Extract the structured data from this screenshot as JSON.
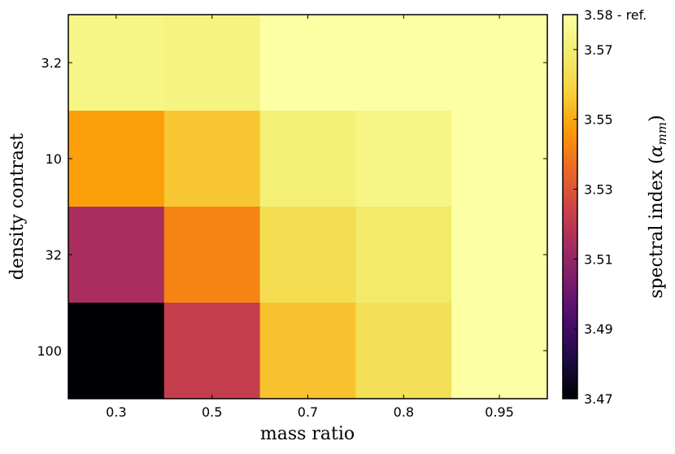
{
  "chart_data": {
    "type": "heatmap",
    "xlabel": "mass ratio",
    "ylabel": "density contrast",
    "x_categories": [
      "0.3",
      "0.5",
      "0.7",
      "0.8",
      "0.95"
    ],
    "y_categories": [
      "3.2",
      "10",
      "32",
      "100"
    ],
    "values": [
      [
        3.574,
        3.573,
        3.58,
        3.58,
        3.58
      ],
      [
        3.548,
        3.556,
        3.571,
        3.574,
        3.58
      ],
      [
        3.515,
        3.542,
        3.563,
        3.568,
        3.58
      ],
      [
        3.47,
        3.522,
        3.555,
        3.564,
        3.58
      ]
    ],
    "colorbar": {
      "label_text": "spectral index",
      "label_symbol": "α",
      "label_subscript": "mm",
      "range": [
        3.47,
        3.58
      ],
      "ticks": [
        {
          "value": 3.58,
          "label": "3.58 - ref."
        },
        {
          "value": 3.57,
          "label": "3.57"
        },
        {
          "value": 3.55,
          "label": "3.55"
        },
        {
          "value": 3.53,
          "label": "3.53"
        },
        {
          "value": 3.51,
          "label": "3.51"
        },
        {
          "value": 3.49,
          "label": "3.49"
        },
        {
          "value": 3.47,
          "label": "3.47"
        }
      ],
      "colormap": "inferno"
    },
    "grid": false
  }
}
